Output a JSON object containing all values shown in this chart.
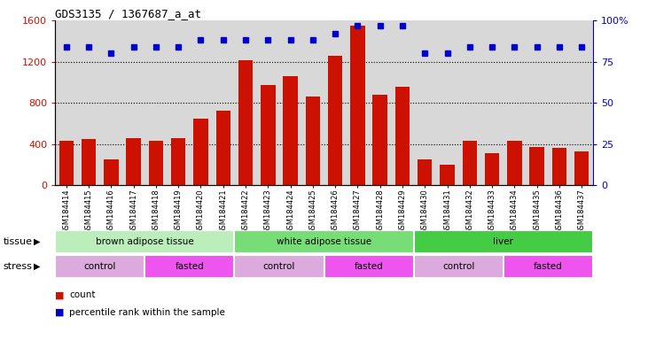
{
  "title": "GDS3135 / 1367687_a_at",
  "samples": [
    "GSM184414",
    "GSM184415",
    "GSM184416",
    "GSM184417",
    "GSM184418",
    "GSM184419",
    "GSM184420",
    "GSM184421",
    "GSM184422",
    "GSM184423",
    "GSM184424",
    "GSM184425",
    "GSM184426",
    "GSM184427",
    "GSM184428",
    "GSM184429",
    "GSM184430",
    "GSM184431",
    "GSM184432",
    "GSM184433",
    "GSM184434",
    "GSM184435",
    "GSM184436",
    "GSM184437"
  ],
  "counts": [
    430,
    445,
    255,
    460,
    430,
    460,
    650,
    720,
    1215,
    970,
    1060,
    860,
    1255,
    1545,
    880,
    960,
    250,
    200,
    430,
    315,
    430,
    375,
    360,
    330
  ],
  "percentiles_pct": [
    84,
    84,
    80,
    84,
    84,
    84,
    88,
    88,
    88,
    88,
    88,
    88,
    92,
    97,
    97,
    97,
    80,
    80,
    84,
    84,
    84,
    84,
    84,
    84
  ],
  "bar_color": "#cc1100",
  "dot_color": "#0000cc",
  "ylim_left": [
    0,
    1600
  ],
  "ylim_right": [
    0,
    100
  ],
  "yticks_left": [
    0,
    400,
    800,
    1200,
    1600
  ],
  "yticks_right": [
    0,
    25,
    50,
    75,
    100
  ],
  "tissue_groups": [
    {
      "label": "brown adipose tissue",
      "start": 0,
      "end": 8,
      "color": "#bbeebb"
    },
    {
      "label": "white adipose tissue",
      "start": 8,
      "end": 16,
      "color": "#77dd77"
    },
    {
      "label": "liver",
      "start": 16,
      "end": 24,
      "color": "#44cc44"
    }
  ],
  "stress_groups": [
    {
      "label": "control",
      "start": 0,
      "end": 4,
      "color": "#ddaadd"
    },
    {
      "label": "fasted",
      "start": 4,
      "end": 8,
      "color": "#ee55ee"
    },
    {
      "label": "control",
      "start": 8,
      "end": 12,
      "color": "#ddaadd"
    },
    {
      "label": "fasted",
      "start": 12,
      "end": 16,
      "color": "#ee55ee"
    },
    {
      "label": "control",
      "start": 16,
      "end": 20,
      "color": "#ddaadd"
    },
    {
      "label": "fasted",
      "start": 20,
      "end": 24,
      "color": "#ee55ee"
    }
  ],
  "legend_count_label": "count",
  "legend_pct_label": "percentile rank within the sample",
  "background_color": "#ffffff",
  "plot_bg_color": "#d8d8d8"
}
